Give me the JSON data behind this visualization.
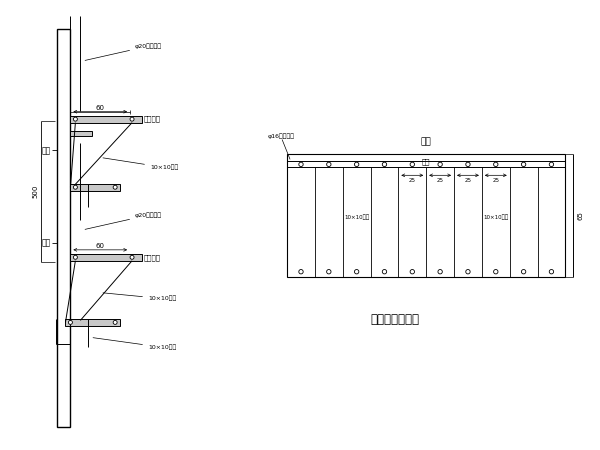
{
  "bg_color": "#ffffff",
  "line_color": "#000000",
  "title": "翻模平台制作图",
  "label_moba": "模板",
  "label_beiban": "背板",
  "label_mianban": "面板",
  "label_zhongjian": "中间",
  "label_fanggang1": "10×10方钢",
  "label_fanggang2": "10×10方钢",
  "label_500": "500",
  "label_60_1": "60",
  "label_60_2": "60",
  "label_65": "65",
  "label_25a": "25",
  "label_25b": "25",
  "label_25c": "25",
  "label_25d": "25",
  "label_gzpt1": "工作平台",
  "label_gzpt2": "工作平台",
  "label_phi20_1": "φ20钢筒支撑",
  "label_phi20_2": "φ20钢筒支撑",
  "label_jiaogang1": "10×10角钢",
  "label_jiaogang2": "10×10角钢",
  "label_jiaogang3": "10×10角钢",
  "label_phi16": "φ16而外螺栋"
}
